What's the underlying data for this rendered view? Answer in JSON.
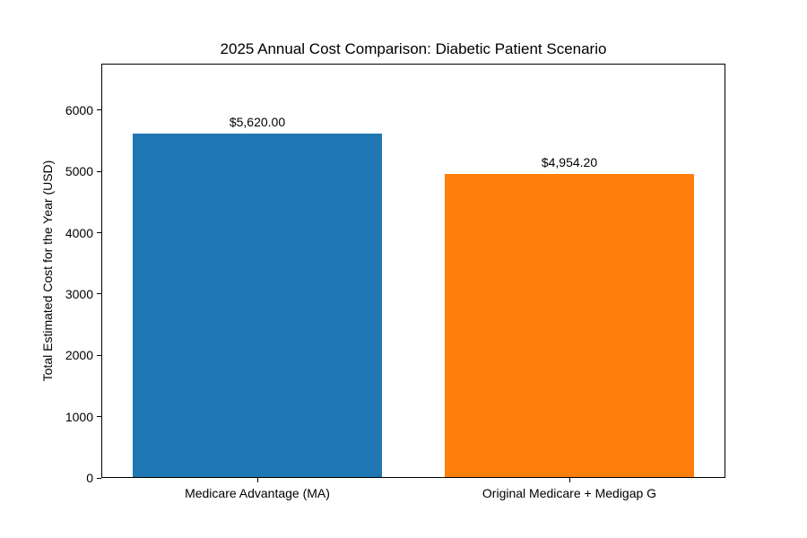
{
  "chart_data": {
    "type": "bar",
    "title": "2025 Annual Cost Comparison: Diabetic Patient Scenario",
    "ylabel": "Total Estimated Cost for the Year (USD)",
    "xlabel": "",
    "categories": [
      "Medicare Advantage (MA)",
      "Original Medicare + Medigap G"
    ],
    "values": [
      5620.0,
      4954.2
    ],
    "value_labels": [
      "$5,620.00",
      "$4,954.20"
    ],
    "bar_colors": [
      "#1f77b4",
      "#ff7f0e"
    ],
    "yticks": [
      0,
      1000,
      2000,
      3000,
      4000,
      5000,
      6000
    ],
    "ytick_labels": [
      "0",
      "1000",
      "2000",
      "3000",
      "4000",
      "5000",
      "6000"
    ],
    "ylim": [
      0,
      6760
    ],
    "bar_width_fraction": 0.8,
    "grid": false,
    "legend_position": "none",
    "background_color": "#ffffff",
    "axes_edge_color": "#000000",
    "text_color": "#000000"
  }
}
